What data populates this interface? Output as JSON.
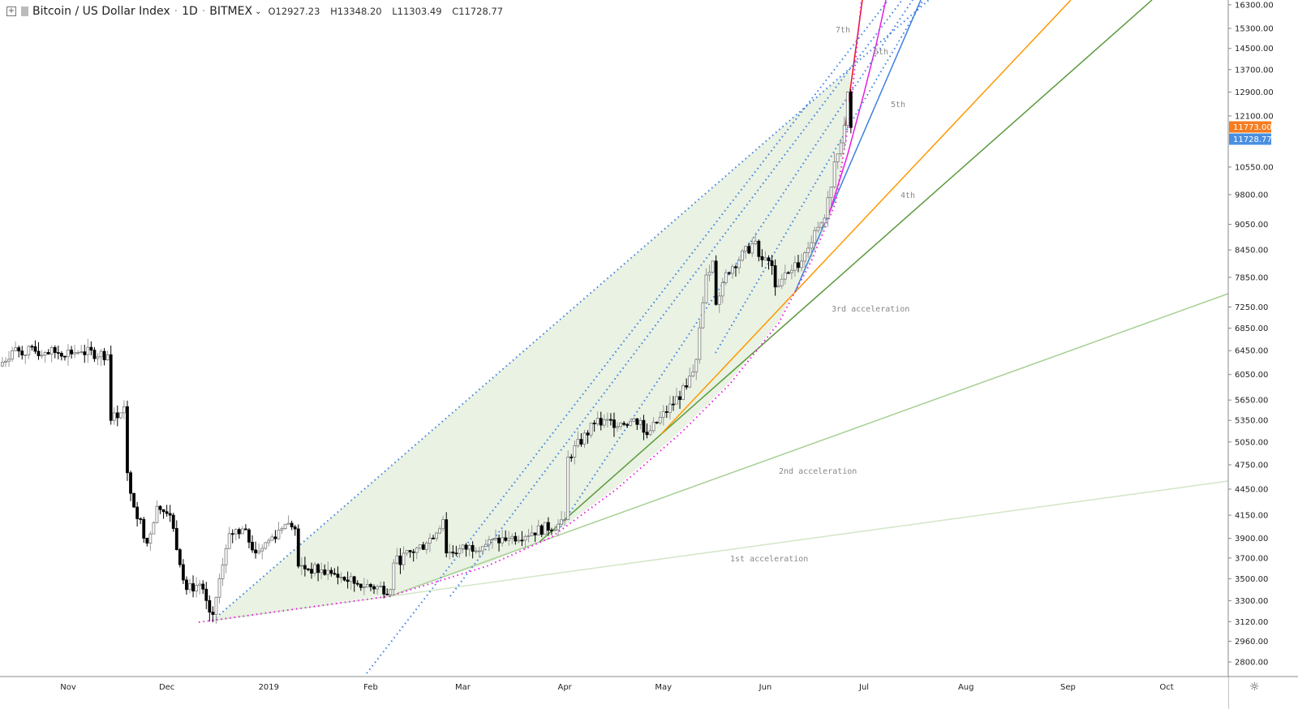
{
  "header": {
    "symbol": "Bitcoin / US Dollar Index",
    "interval": "1D",
    "exchange": "BITMEX",
    "open": "O12927.23",
    "high": "H13348.20",
    "low": "L11303.49",
    "close": "C11728.77",
    "icons": [
      "plus-square-icon",
      "chevron-down-icon"
    ]
  },
  "chart_data": {
    "type": "candlestick",
    "title": "Bitcoin / US Dollar Index · 1D · BITMEX",
    "yscale": "log",
    "ylim": [
      2700,
      16500
    ],
    "xlim": [
      "2018-10-11",
      "2019-10-15"
    ],
    "grid": false,
    "y_ticks": [
      "16300.00",
      "15300.00",
      "14500.00",
      "13700.00",
      "12900.00",
      "12100.00",
      "10550.00",
      "9800.00",
      "9050.00",
      "8450.00",
      "7850.00",
      "7250.00",
      "6850.00",
      "6450.00",
      "6050.00",
      "5650.00",
      "5350.00",
      "5050.00",
      "4750.00",
      "4450.00",
      "4150.00",
      "3900.00",
      "3700.00",
      "3500.00",
      "3300.00",
      "3120.00",
      "2960.00",
      "2800.00"
    ],
    "x_ticks": [
      {
        "label": "Nov",
        "date": "2018-11-01"
      },
      {
        "label": "Dec",
        "date": "2018-12-01"
      },
      {
        "label": "2019",
        "date": "2019-01-01"
      },
      {
        "label": "Feb",
        "date": "2019-02-01"
      },
      {
        "label": "Mar",
        "date": "2019-03-01"
      },
      {
        "label": "Apr",
        "date": "2019-04-01"
      },
      {
        "label": "May",
        "date": "2019-05-01"
      },
      {
        "label": "Jun",
        "date": "2019-06-01"
      },
      {
        "label": "Jul",
        "date": "2019-07-01"
      },
      {
        "label": "Aug",
        "date": "2019-08-01"
      },
      {
        "label": "Sep",
        "date": "2019-09-01"
      },
      {
        "label": "Oct",
        "date": "2019-10-01"
      }
    ],
    "price_labels": [
      {
        "value": "11773.00",
        "color": "#f57c20"
      },
      {
        "value": "11728.77",
        "color": "#4a8ee0"
      }
    ],
    "close_path": [
      [
        "2018-10-11",
        6190
      ],
      [
        "2018-10-15",
        6450
      ],
      [
        "2018-10-25",
        6420
      ],
      [
        "2018-11-05",
        6430
      ],
      [
        "2018-11-13",
        6380
      ],
      [
        "2018-11-14",
        5350
      ],
      [
        "2018-11-18",
        5550
      ],
      [
        "2018-11-19",
        4650
      ],
      [
        "2018-11-20",
        4400
      ],
      [
        "2018-11-25",
        3850
      ],
      [
        "2018-11-28",
        4250
      ],
      [
        "2018-12-02",
        4150
      ],
      [
        "2018-12-07",
        3400
      ],
      [
        "2018-12-11",
        3450
      ],
      [
        "2018-12-14",
        3200
      ],
      [
        "2018-12-15",
        3180
      ],
      [
        "2018-12-17",
        3500
      ],
      [
        "2018-12-20",
        3950
      ],
      [
        "2018-12-24",
        4000
      ],
      [
        "2018-12-28",
        3750
      ],
      [
        "2019-01-06",
        4050
      ],
      [
        "2019-01-09",
        4000
      ],
      [
        "2019-01-10",
        3620
      ],
      [
        "2019-01-20",
        3550
      ],
      [
        "2019-01-28",
        3450
      ],
      [
        "2019-02-07",
        3400
      ],
      [
        "2019-02-08",
        3650
      ],
      [
        "2019-02-18",
        3850
      ],
      [
        "2019-02-23",
        4100
      ],
      [
        "2019-02-24",
        3750
      ],
      [
        "2019-03-15",
        3900
      ],
      [
        "2019-03-30",
        4050
      ],
      [
        "2019-04-01",
        4100
      ],
      [
        "2019-04-02",
        4850
      ],
      [
        "2019-04-10",
        5300
      ],
      [
        "2019-04-24",
        5350
      ],
      [
        "2019-04-26",
        5150
      ],
      [
        "2019-05-08",
        5850
      ],
      [
        "2019-05-11",
        6300
      ],
      [
        "2019-05-14",
        7900
      ],
      [
        "2019-05-16",
        8200
      ],
      [
        "2019-05-17",
        7300
      ],
      [
        "2019-05-20",
        7950
      ],
      [
        "2019-05-29",
        8650
      ],
      [
        "2019-05-30",
        8300
      ],
      [
        "2019-06-03",
        8100
      ],
      [
        "2019-06-04",
        7650
      ],
      [
        "2019-06-07",
        7950
      ],
      [
        "2019-06-12",
        8200
      ],
      [
        "2019-06-16",
        8900
      ],
      [
        "2019-06-19",
        9200
      ],
      [
        "2019-06-21",
        10000
      ],
      [
        "2019-06-22",
        10700
      ],
      [
        "2019-06-25",
        11800
      ],
      [
        "2019-06-26",
        12900
      ],
      [
        "2019-06-27",
        11728.77
      ]
    ],
    "annotations": {
      "first": "1st acceleration",
      "second": "2nd acceleration",
      "third": "3rd acceleration",
      "fourth": "4th",
      "fifth": "5th",
      "sixth": "6th",
      "seventh": "7th"
    },
    "line_colors": {
      "pale_green": "#c8e0bd",
      "light_green": "#a8d095",
      "green": "#5a9a3c",
      "orange": "#ff9800",
      "blue": "#3d7fe0",
      "magenta": "#e91ee0",
      "red": "#e8141e",
      "fill": "#e9f2e3"
    }
  }
}
